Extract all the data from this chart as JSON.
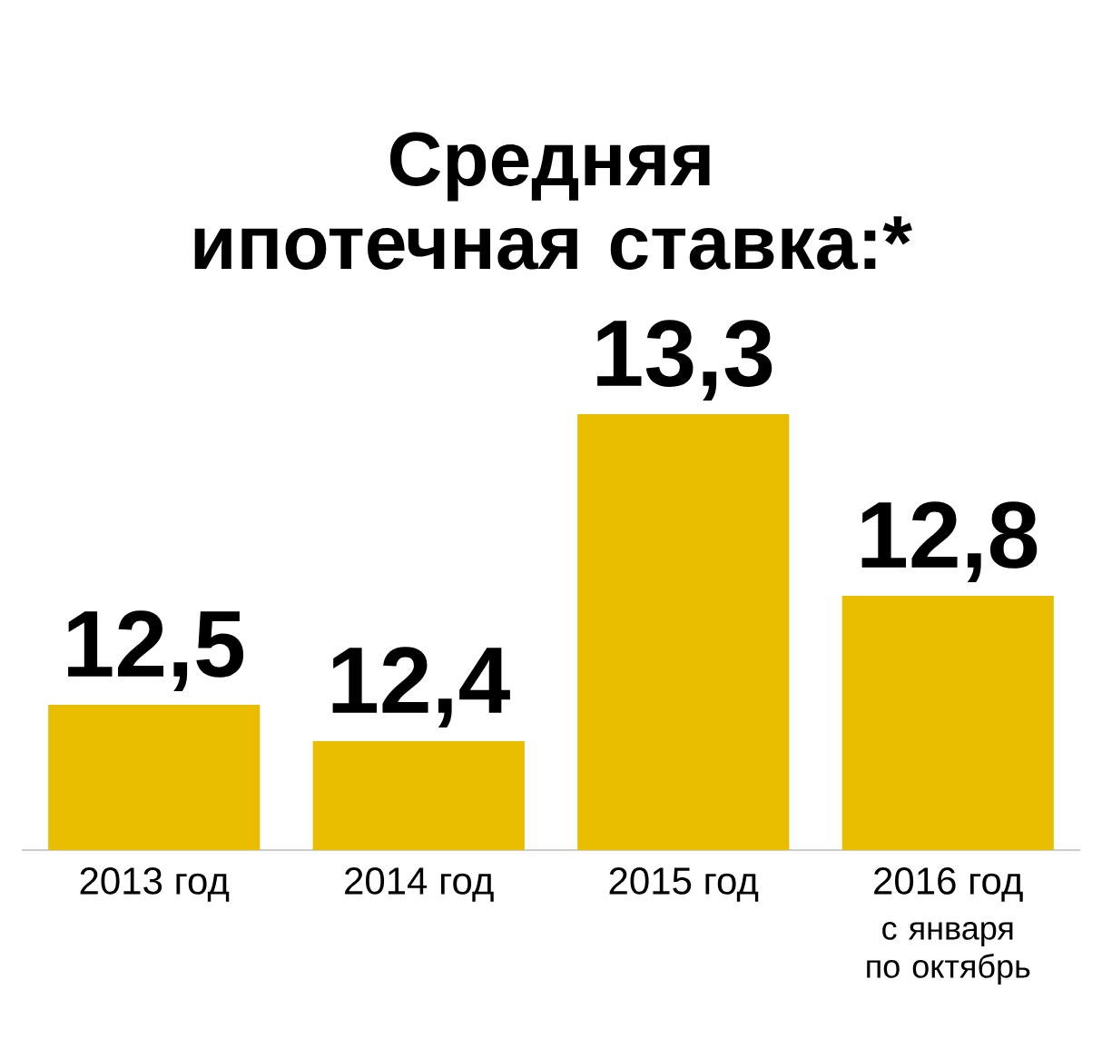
{
  "chart_data": {
    "type": "bar",
    "title": "Средняя ипотечная ставка:*",
    "categories": [
      "2013 год",
      "2014 год",
      "2015 год",
      "2016 год"
    ],
    "values": [
      12.5,
      12.4,
      13.3,
      12.8
    ],
    "value_labels": [
      "12,5",
      "12,4",
      "13,3",
      "12,8"
    ],
    "color": "#e9bd00",
    "ylim": [
      12.1,
      13.3
    ],
    "annotations": [
      "с января по октябрь"
    ]
  }
}
